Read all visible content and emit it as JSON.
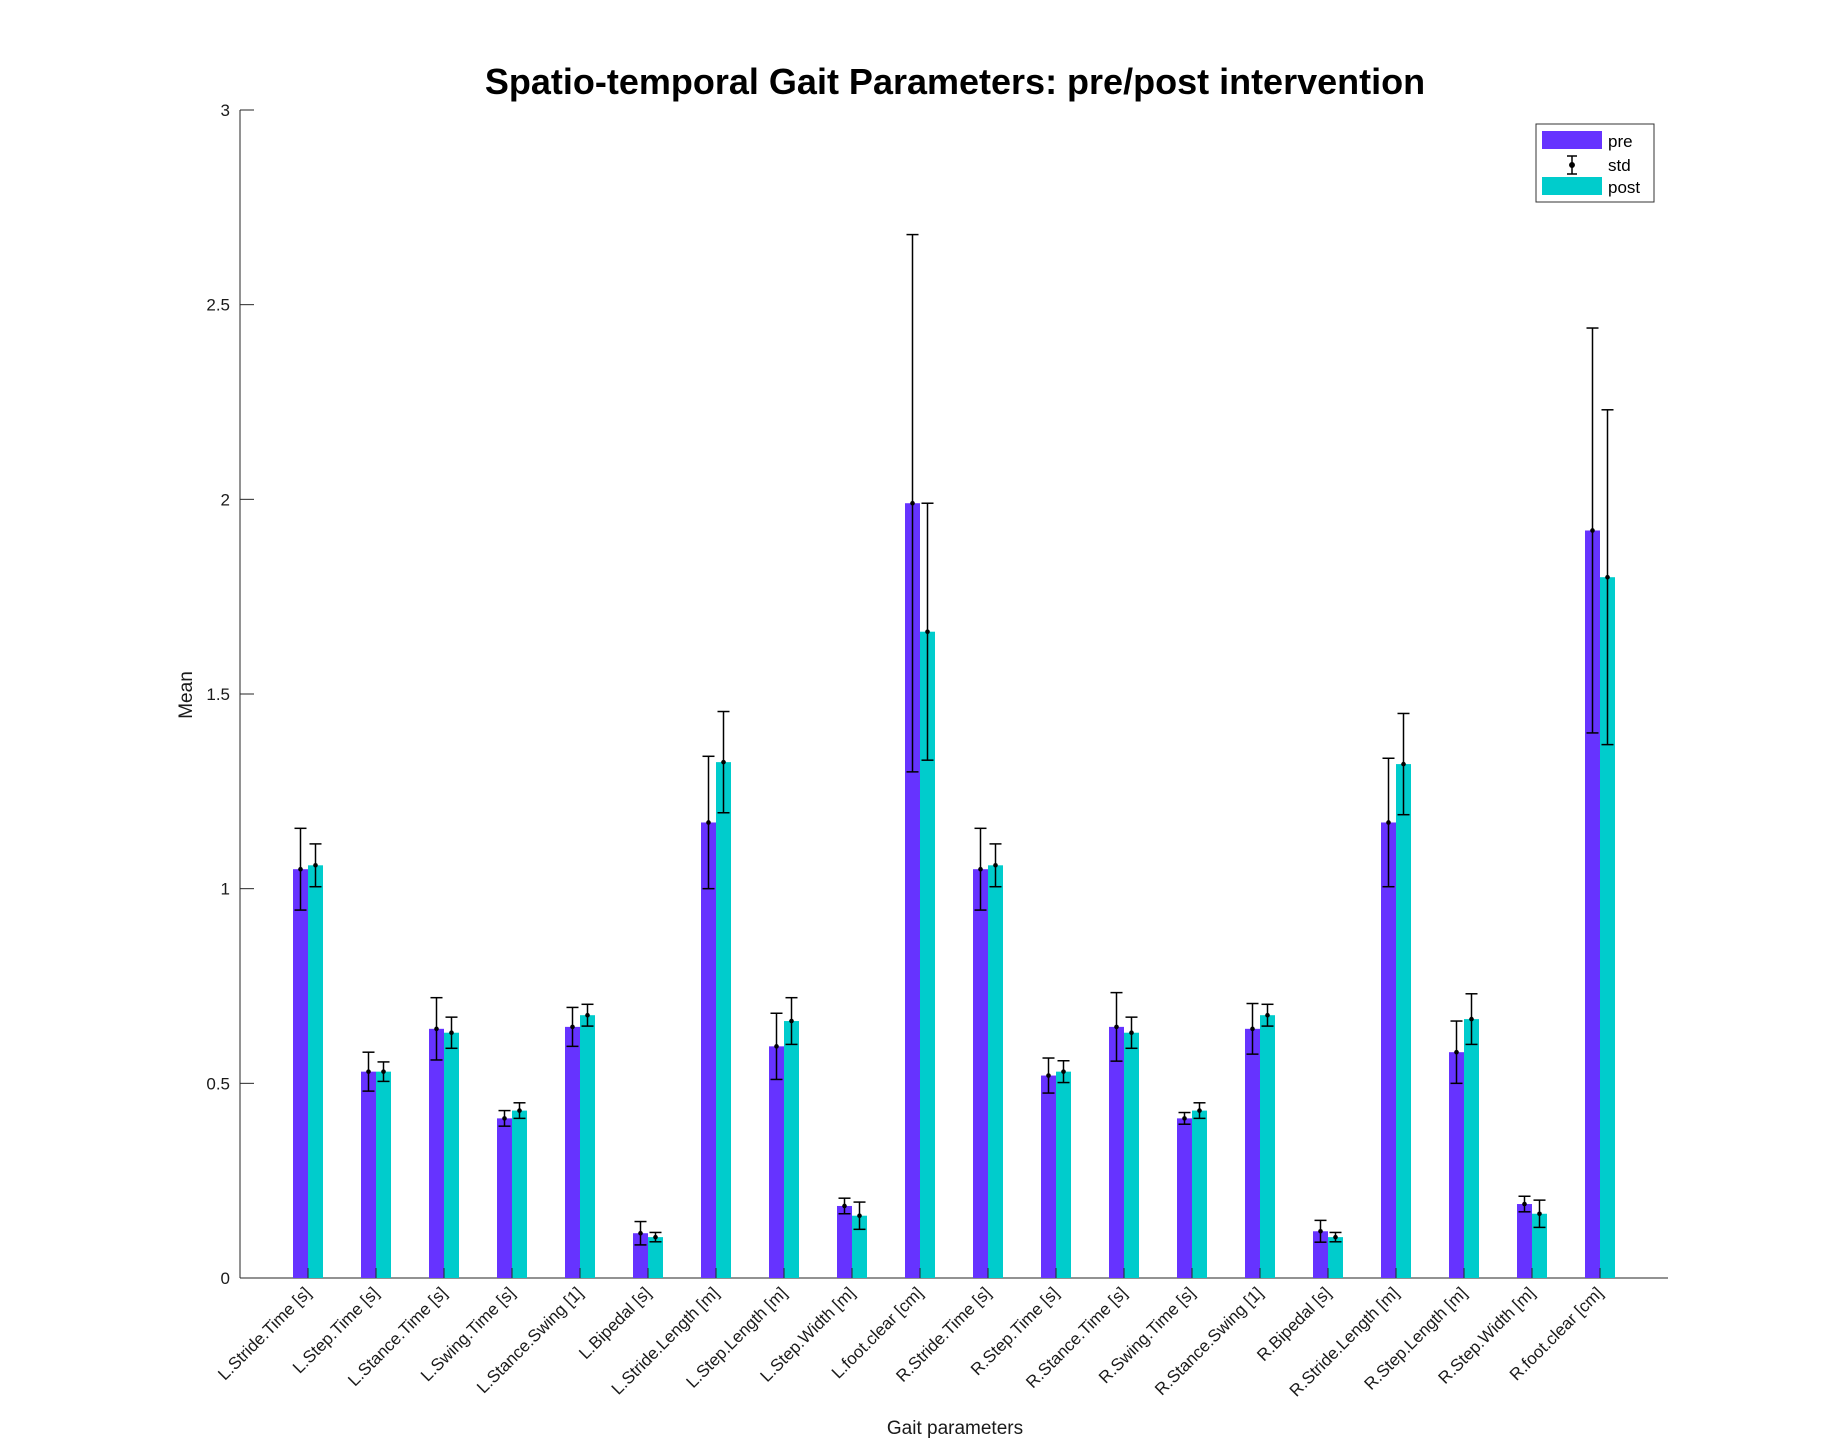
{
  "chart_data": {
    "type": "bar",
    "title": "Spatio-temporal Gait Parameters: pre/post intervention",
    "xlabel": "Gait parameters",
    "ylabel": "Mean",
    "ylim": [
      0,
      3
    ],
    "yticks": [
      "0",
      "0.5",
      "1",
      "1.5",
      "2",
      "2.5",
      "3"
    ],
    "categories": [
      "L.Stride.Time [s]",
      "L.Step.Time [s]",
      "L.Stance.Time [s]",
      "L.Swing.Time [s]",
      "L.Stance.Swing [1]",
      "L.Bipedal [s]",
      "L.Stride.Length [m]",
      "L.Step.Length [m]",
      "L.Step.Width [m]",
      "L.foot.clear [cm]",
      "R.Stride.Time [s]",
      "R.Step.Time [s]",
      "R.Stance.Time [s]",
      "R.Swing.Time [s]",
      "R.Stance.Swing [1]",
      "R.Bipedal [s]",
      "R.Stride.Length [m]",
      "R.Step.Length [m]",
      "R.Step.Width [m]",
      "R.foot.clear [cm]"
    ],
    "series": [
      {
        "name": "pre",
        "color": "#6633ff",
        "values": [
          1.05,
          0.53,
          0.64,
          0.41,
          0.645,
          0.115,
          1.17,
          0.595,
          0.185,
          1.99,
          1.05,
          0.52,
          0.645,
          0.41,
          0.64,
          0.12,
          1.17,
          0.58,
          0.19,
          1.92
        ],
        "std": [
          0.105,
          0.05,
          0.08,
          0.02,
          0.05,
          0.03,
          0.17,
          0.085,
          0.02,
          0.69,
          0.105,
          0.045,
          0.088,
          0.015,
          0.065,
          0.028,
          0.165,
          0.08,
          0.02,
          0.52
        ]
      },
      {
        "name": "post",
        "color": "#00cccc",
        "values": [
          1.06,
          0.53,
          0.63,
          0.43,
          0.675,
          0.105,
          1.325,
          0.66,
          0.16,
          1.66,
          1.06,
          0.53,
          0.63,
          0.43,
          0.675,
          0.105,
          1.32,
          0.665,
          0.165,
          1.8
        ],
        "std": [
          0.055,
          0.025,
          0.04,
          0.02,
          0.028,
          0.012,
          0.13,
          0.06,
          0.035,
          0.33,
          0.055,
          0.028,
          0.04,
          0.02,
          0.028,
          0.012,
          0.13,
          0.065,
          0.035,
          0.43
        ]
      }
    ],
    "legend": {
      "placement": "top-right",
      "entries": [
        "pre",
        "std",
        "post"
      ]
    },
    "grid": false
  }
}
